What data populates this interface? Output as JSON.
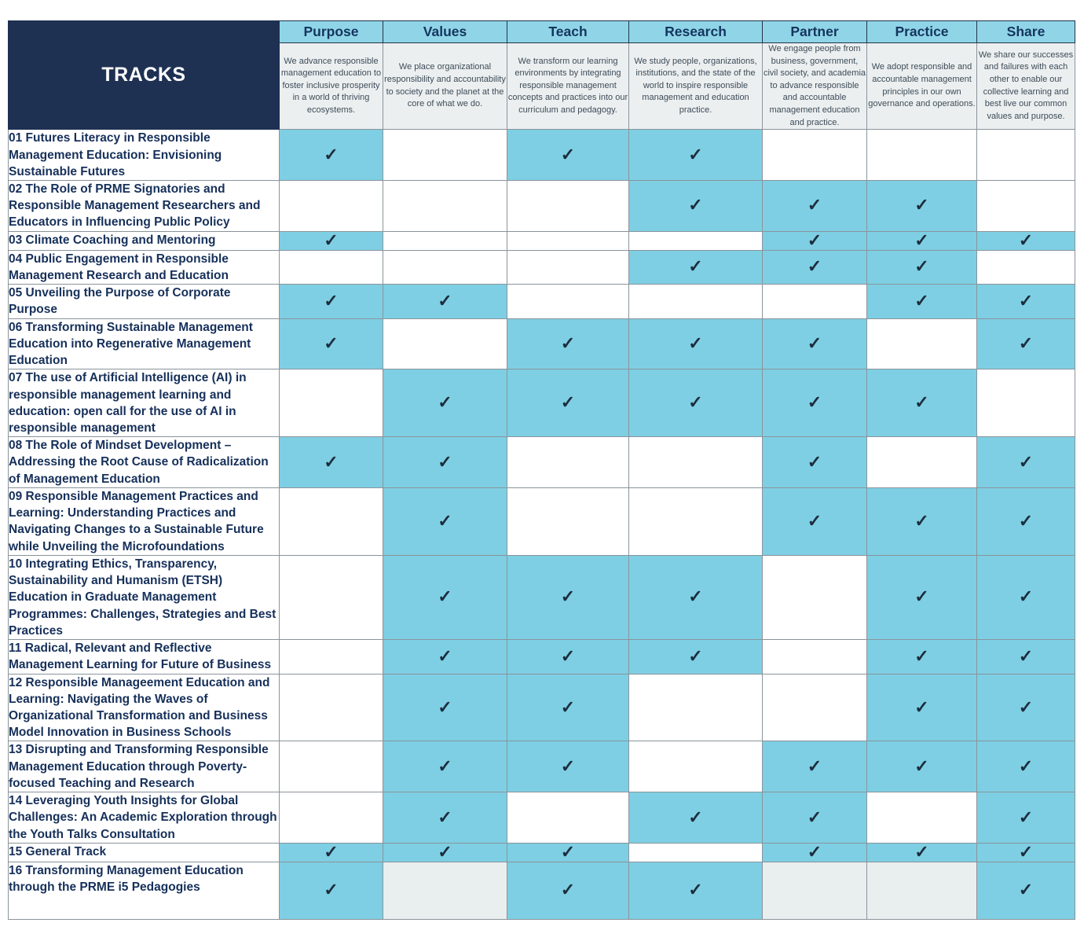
{
  "table": {
    "title": "TRACKS",
    "check_icon": "✓",
    "columns": [
      {
        "label": "Purpose",
        "description": "We advance responsible management education to foster inclusive prosperity in a world of thriving ecosystems."
      },
      {
        "label": "Values",
        "description": "We place organizational responsibility and accountability to society and the planet at the core of what we do."
      },
      {
        "label": "Teach",
        "description": "We transform our learning environments by integrating responsible management concepts and practices into our curriculum and pedagogy."
      },
      {
        "label": "Research",
        "description": "We study people, organizations, institutions, and the state of the world to inspire responsible management and education practice."
      },
      {
        "label": "Partner",
        "description": "We engage people from business, government, civil society, and academia to advance responsible and accountable management education and practice."
      },
      {
        "label": "Practice",
        "description": "We adopt responsible and accountable management principles in our own governance and operations."
      },
      {
        "label": "Share",
        "description": "We share our successes and failures with each other to enable our collective learning and best live our common values and purpose."
      }
    ],
    "tracks": [
      {
        "label": "01 Futures Literacy in Responsible Management Education: Envisioning Sustainable Futures",
        "cells": [
          "on",
          "off",
          "on",
          "on",
          "off",
          "off",
          "off"
        ]
      },
      {
        "label": "02 The Role of PRME Signatories and Responsible Management Researchers and Educators in Influencing Public Policy",
        "cells": [
          "off",
          "off",
          "off",
          "on",
          "on",
          "on",
          "off"
        ]
      },
      {
        "label": "03 Climate Coaching and Mentoring",
        "cells": [
          "on",
          "off",
          "off",
          "off",
          "on",
          "on",
          "on"
        ]
      },
      {
        "label": "04 Public Engagement in Responsible Management Research and Education",
        "cells": [
          "off",
          "off",
          "off",
          "on",
          "on",
          "on",
          "off"
        ]
      },
      {
        "label": "05 Unveiling the Purpose of Corporate Purpose",
        "cells": [
          "on",
          "on",
          "off",
          "off",
          "off",
          "on",
          "on"
        ]
      },
      {
        "label": "06 Transforming Sustainable Management Education into Regenerative Management Education",
        "cells": [
          "on",
          "off",
          "on",
          "on",
          "on",
          "off",
          "on"
        ]
      },
      {
        "label": "07 The use of Artificial Intelligence (AI) in responsible management learning and education: open call for the use of AI in responsible management",
        "cells": [
          "off",
          "on",
          "on",
          "on",
          "on",
          "on",
          "off"
        ]
      },
      {
        "label": "08 The Role of Mindset Development – Addressing the Root Cause of Radicalization of Management Education",
        "cells": [
          "on",
          "on",
          "off",
          "off",
          "on",
          "off",
          "on"
        ]
      },
      {
        "label": "09 Responsible Management Practices and Learning: Understanding Practices and Navigating Changes to a Sustainable Future while Unveiling the Microfoundations",
        "cells": [
          "off",
          "on",
          "off",
          "off",
          "on",
          "on",
          "on"
        ]
      },
      {
        "label": "10 Integrating Ethics, Transparency, Sustainability and Humanism (ETSH) Education in Graduate Management Programmes: Challenges, Strategies and Best Practices",
        "cells": [
          "off",
          "on",
          "on",
          "on",
          "off",
          "on",
          "on"
        ]
      },
      {
        "label": "11 Radical, Relevant and Reflective Management Learning for Future of Business",
        "cells": [
          "off",
          "on",
          "on",
          "on",
          "off",
          "on",
          "on"
        ]
      },
      {
        "label": "12 Responsible Manageement Education and Learning: Navigating the Waves of Organizational Transformation and Business Model Innovation in Business Schools",
        "cells": [
          "off",
          "on",
          "on",
          "off",
          "off",
          "on",
          "on"
        ]
      },
      {
        "label": "13 Disrupting and Transforming Responsible Management Education through Poverty-focused Teaching and Research",
        "cells": [
          "off",
          "on",
          "on",
          "off",
          "on",
          "on",
          "on"
        ]
      },
      {
        "label": "14 Leveraging Youth Insights for Global Challenges: An Academic Exploration through the Youth Talks Consultation",
        "cells": [
          "off",
          "on",
          "off",
          "on",
          "on",
          "off",
          "on"
        ]
      },
      {
        "label": "15 General Track",
        "cells": [
          "on",
          "on",
          "on",
          "off",
          "on",
          "on",
          "on"
        ]
      },
      {
        "label": "16  Transforming Management Education through the PRME i5 Pedagogies",
        "cells": [
          "on",
          "na",
          "on",
          "on",
          "na",
          "na",
          "on"
        ]
      }
    ]
  },
  "colors": {
    "header_navy": "#1e3152",
    "header_blue": "#8fd5e7",
    "cell_blue": "#7ecfe3",
    "description_gray": "#eceff0",
    "na_gray": "#e9eeee",
    "check_color": "#1d2d3e"
  }
}
